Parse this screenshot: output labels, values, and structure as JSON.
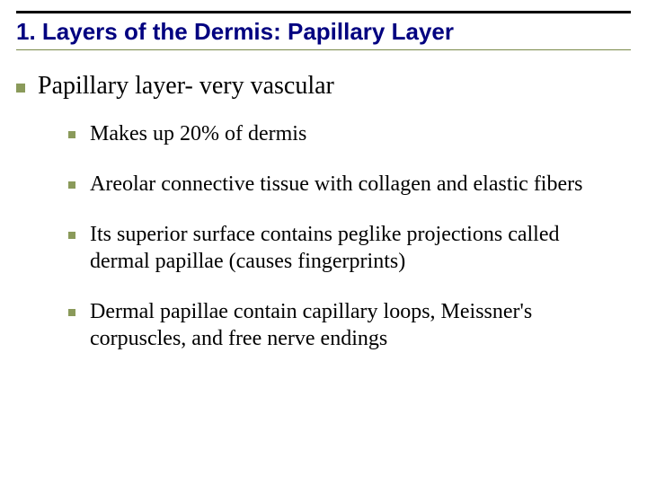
{
  "slide": {
    "title": "1.  Layers of the Dermis: Papillary Layer",
    "title_color": "#000080",
    "title_fontsize": 26,
    "rule_top_color": "#000000",
    "rule_bottom_color": "#7a8a4a",
    "background_color": "#ffffff",
    "bullet_color": "#8a9a5a",
    "top_item": {
      "text": "Papillary layer- very vascular",
      "font_family": "Times New Roman",
      "fontsize": 28
    },
    "sub_items": [
      {
        "text": "Makes up 20% of dermis"
      },
      {
        "text": "Areolar connective tissue with collagen and elastic fibers"
      },
      {
        "text": "Its superior surface contains peglike projections called dermal papillae (causes fingerprints)"
      },
      {
        "text": "Dermal papillae contain capillary loops, Meissner's corpuscles, and free nerve endings"
      }
    ],
    "sub_fontsize": 24,
    "sub_font_family": "Times New Roman"
  }
}
